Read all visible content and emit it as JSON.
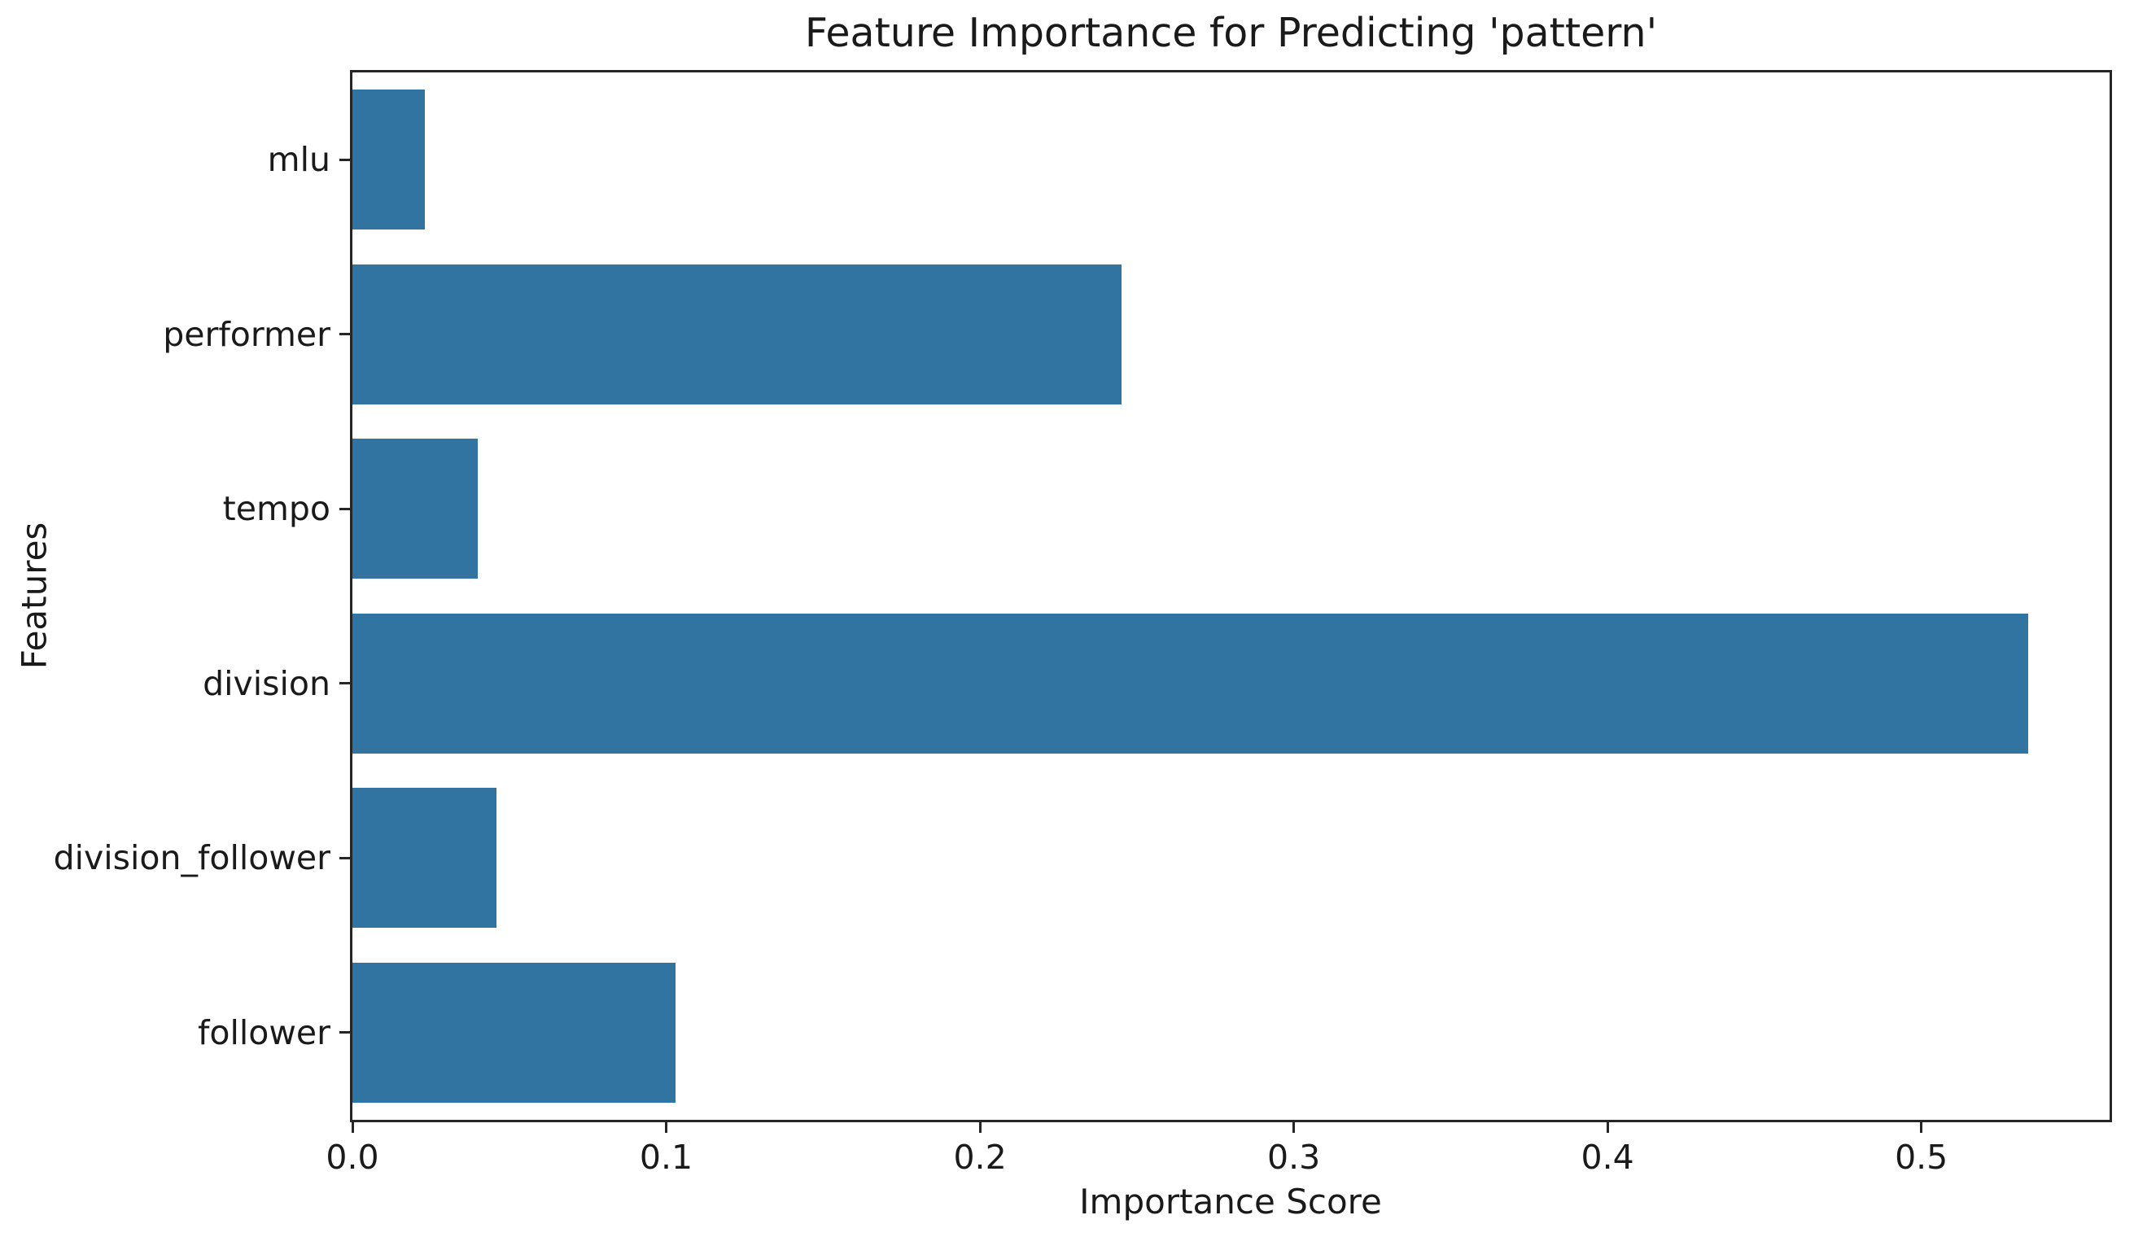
{
  "chart_data": {
    "type": "bar",
    "orientation": "horizontal",
    "title": "Feature Importance for Predicting 'pattern'",
    "xlabel": "Importance Score",
    "ylabel": "Features",
    "categories": [
      "mlu",
      "performer",
      "tempo",
      "division",
      "division_follower",
      "follower"
    ],
    "values": [
      0.023,
      0.245,
      0.04,
      0.534,
      0.046,
      0.103
    ],
    "xlim": [
      0,
      0.56
    ],
    "xtick_labels": [
      "0.0",
      "0.1",
      "0.2",
      "0.3",
      "0.4",
      "0.5"
    ],
    "xtick_values": [
      0.0,
      0.1,
      0.2,
      0.3,
      0.4,
      0.5
    ],
    "bar_height_fraction": 0.8,
    "grid": false,
    "legend": "none",
    "bar_color": "#3274a1",
    "text_color": "#1a1a1a",
    "spine_color": "#262626"
  }
}
